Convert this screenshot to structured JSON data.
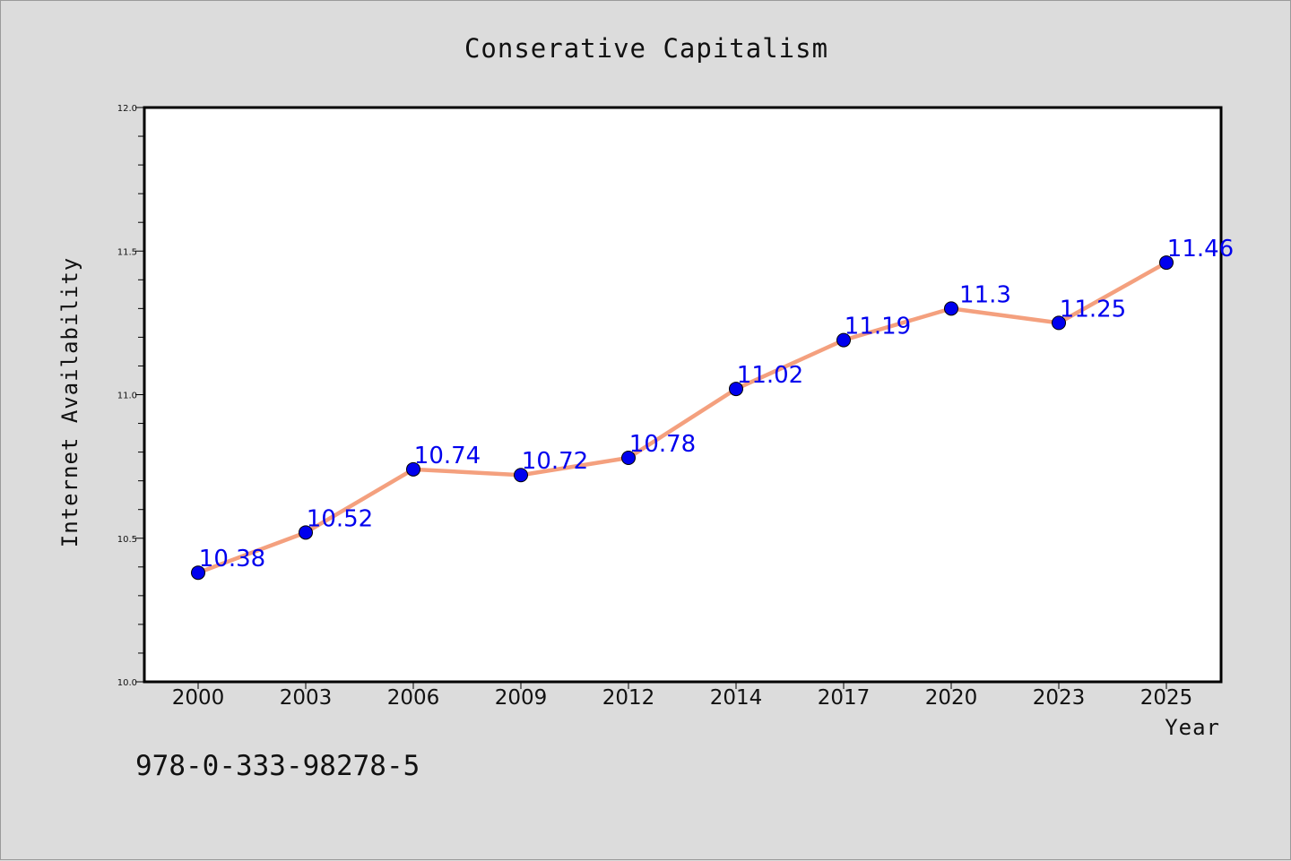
{
  "chart_data": {
    "type": "line",
    "title": "Conserative Capitalism",
    "xlabel": "Year",
    "ylabel": "Internet Availability",
    "categories": [
      "2000",
      "2003",
      "2006",
      "2009",
      "2012",
      "2014",
      "2017",
      "2020",
      "2023",
      "2025"
    ],
    "series": [
      {
        "values": [
          10.38,
          10.52,
          10.74,
          10.72,
          10.78,
          11.02,
          11.19,
          11.3,
          11.25,
          11.46
        ],
        "data_labels": [
          "10.38",
          "10.52",
          "10.74",
          "10.72",
          "10.78",
          "11.02",
          "11.19",
          "11.3",
          "11.25",
          "11.46"
        ],
        "line_color": "#f4a07e",
        "marker_color": "#0000ee"
      }
    ],
    "ylim": [
      10.0,
      12.0
    ],
    "y_ticks": [
      "10.0",
      "10.5",
      "11.0",
      "11.5",
      "12.0"
    ],
    "grid": false,
    "legend": "none"
  },
  "footer_text": "978-0-333-98278-5",
  "colors": {
    "background": "#dcdcdc",
    "plot_background": "#ffffff",
    "line": "#f4a07e",
    "marker": "#0000ee",
    "labels": "#0000ee"
  }
}
